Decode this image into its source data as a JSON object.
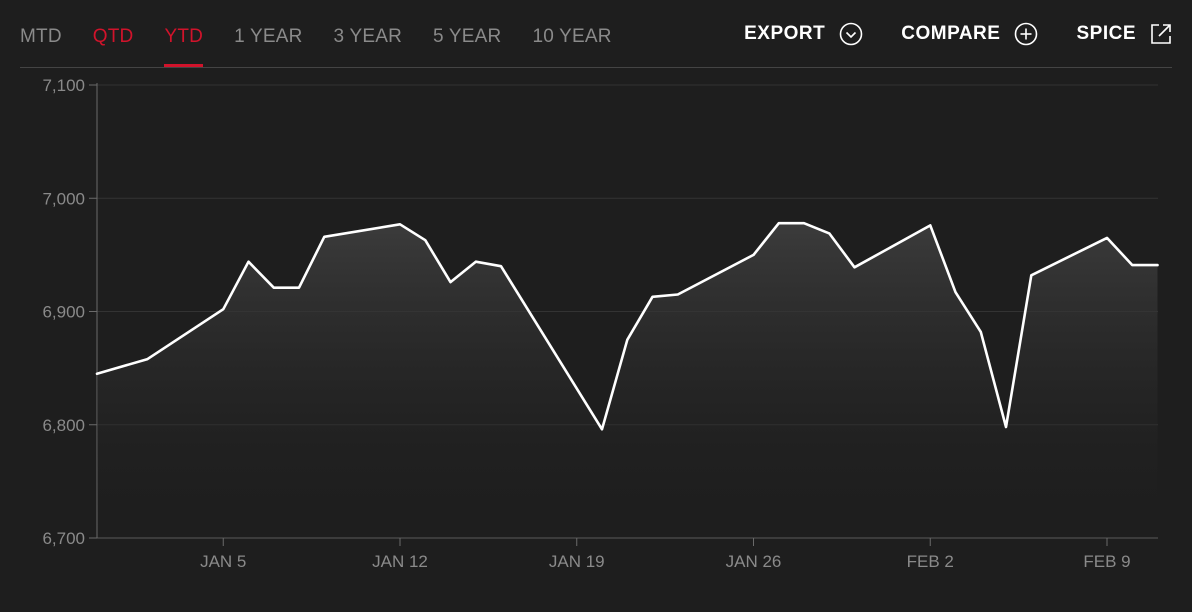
{
  "toolbar": {
    "tabs": [
      {
        "label": "MTD",
        "state": "default"
      },
      {
        "label": "QTD",
        "state": "highlighted"
      },
      {
        "label": "YTD",
        "state": "active"
      },
      {
        "label": "1 YEAR",
        "state": "default"
      },
      {
        "label": "3 YEAR",
        "state": "default"
      },
      {
        "label": "5 YEAR",
        "state": "default"
      },
      {
        "label": "10 YEAR",
        "state": "default"
      }
    ],
    "export_label": "EXPORT",
    "export_icon": "chevron-down-circle-icon",
    "compare_label": "COMPARE",
    "compare_icon": "plus-circle-icon",
    "spice_label": "SPICE",
    "spice_icon": "external-link-icon"
  },
  "colors": {
    "background": "#1e1e1e",
    "accent": "#d1132b",
    "line": "#ffffff",
    "muted_text": "#8a8a8a",
    "grid": "#3a3a3a"
  },
  "chart_data": {
    "type": "area",
    "title": "",
    "xlabel": "",
    "ylabel": "",
    "ylim": [
      6700,
      7100
    ],
    "y_ticks": [
      7100,
      7000,
      6900,
      6800,
      6700
    ],
    "y_tick_labels": [
      "7,100",
      "7,000",
      "6,900",
      "6,800",
      "6,700"
    ],
    "x_ticks": [
      "2026-01-05",
      "2026-01-12",
      "2026-01-19",
      "2026-01-26",
      "2026-02-02",
      "2026-02-09"
    ],
    "x_tick_labels": [
      "JAN 5",
      "JAN 12",
      "JAN 19",
      "JAN 26",
      "FEB 2",
      "FEB 9"
    ],
    "xlim": [
      "2025-12-31",
      "2026-02-10"
    ],
    "grid": "horizontal",
    "series": [
      {
        "values": [
          {
            "x": "2025-12-31",
            "y": 6845
          },
          {
            "x": "2026-01-02",
            "y": 6858
          },
          {
            "x": "2026-01-05",
            "y": 6902
          },
          {
            "x": "2026-01-06",
            "y": 6944
          },
          {
            "x": "2026-01-07",
            "y": 6921
          },
          {
            "x": "2026-01-08",
            "y": 6921
          },
          {
            "x": "2026-01-09",
            "y": 6966
          },
          {
            "x": "2026-01-12",
            "y": 6977
          },
          {
            "x": "2026-01-13",
            "y": 6963
          },
          {
            "x": "2026-01-14",
            "y": 6926
          },
          {
            "x": "2026-01-15",
            "y": 6944
          },
          {
            "x": "2026-01-16",
            "y": 6940
          },
          {
            "x": "2026-01-20",
            "y": 6796
          },
          {
            "x": "2026-01-21",
            "y": 6875
          },
          {
            "x": "2026-01-22",
            "y": 6913
          },
          {
            "x": "2026-01-23",
            "y": 6915
          },
          {
            "x": "2026-01-26",
            "y": 6950
          },
          {
            "x": "2026-01-27",
            "y": 6978
          },
          {
            "x": "2026-01-28",
            "y": 6978
          },
          {
            "x": "2026-01-29",
            "y": 6969
          },
          {
            "x": "2026-01-30",
            "y": 6939
          },
          {
            "x": "2026-02-02",
            "y": 6976
          },
          {
            "x": "2026-02-03",
            "y": 6917
          },
          {
            "x": "2026-02-04",
            "y": 6882
          },
          {
            "x": "2026-02-05",
            "y": 6798
          },
          {
            "x": "2026-02-06",
            "y": 6932
          },
          {
            "x": "2026-02-09",
            "y": 6965
          },
          {
            "x": "2026-02-10",
            "y": 6941
          },
          {
            "x": "2026-02-11",
            "y": 6941
          }
        ]
      }
    ]
  }
}
